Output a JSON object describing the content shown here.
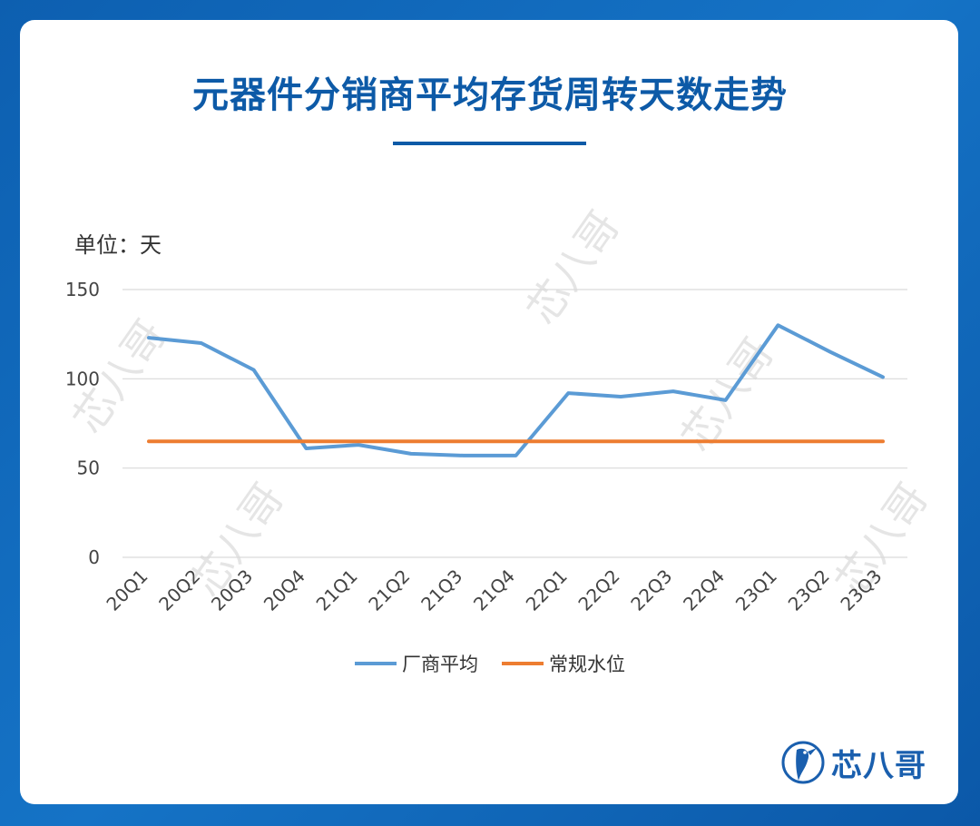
{
  "title": "元器件分销商平均存货周转天数走势",
  "unit_label": "单位：天",
  "logo": {
    "text": "芯八哥",
    "icon": "bird-icon"
  },
  "watermark": "芯八哥",
  "colors": {
    "series_vendor": "#5b9bd5",
    "series_normal": "#ed7d31",
    "title": "#0d5aa7",
    "background": "#1573c6"
  },
  "chart_data": {
    "type": "line",
    "categories": [
      "20Q1",
      "20Q2",
      "20Q3",
      "20Q4",
      "21Q1",
      "21Q2",
      "21Q3",
      "21Q4",
      "22Q1",
      "22Q2",
      "22Q3",
      "22Q4",
      "23Q1",
      "23Q2",
      "23Q3"
    ],
    "y_ticks": [
      "150",
      "100",
      "50",
      "0"
    ],
    "ylim": [
      0,
      150
    ],
    "grid": true,
    "legend_position": "bottom",
    "series": [
      {
        "name": "厂商平均",
        "values": [
          123,
          120,
          105,
          61,
          63,
          58,
          57,
          57,
          92,
          90,
          93,
          88,
          130,
          115,
          101
        ]
      },
      {
        "name": "常规水位",
        "values": [
          65,
          65,
          65,
          65,
          65,
          65,
          65,
          65,
          65,
          65,
          65,
          65,
          65,
          65,
          65
        ]
      }
    ]
  }
}
